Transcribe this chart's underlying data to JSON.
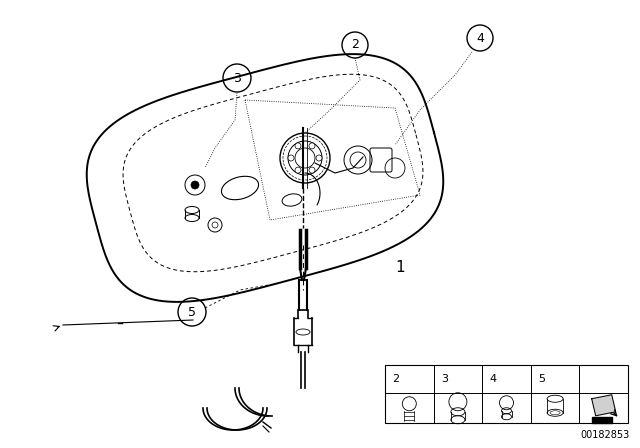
{
  "bg_color": "#ffffff",
  "line_color": "#000000",
  "part_number": "00182853",
  "fig_width": 6.4,
  "fig_height": 4.48,
  "dpi": 100
}
